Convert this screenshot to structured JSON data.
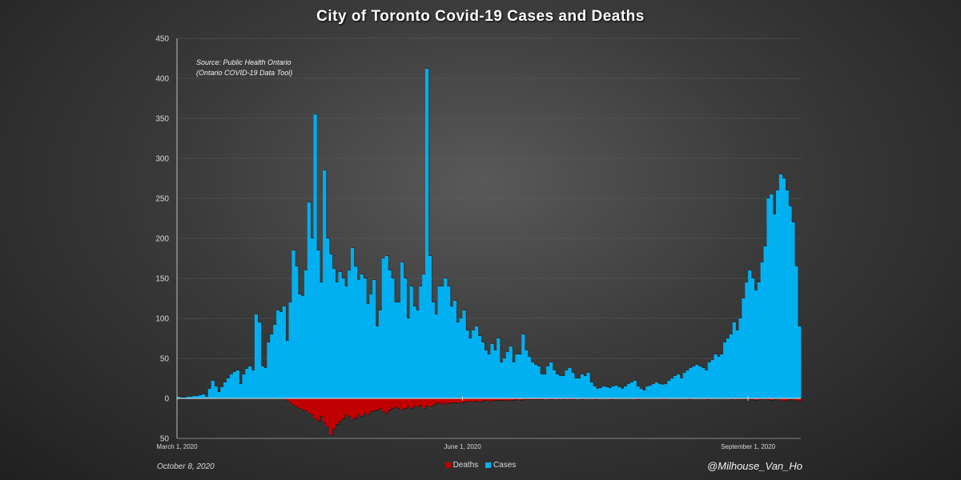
{
  "chart_data": {
    "type": "bar",
    "title": "City of Toronto Covid-19 Cases and Deaths",
    "annotation_lines": [
      "Source: Public Health Ontario",
      "(Ontario COVID-19 Data Tool)"
    ],
    "footer_date": "October 8, 2020",
    "credit": "@Milhouse_Van_Ho",
    "yaxis": {
      "ylim": [
        -50,
        450
      ],
      "ticks": [
        {
          "value": 450,
          "label": "450"
        },
        {
          "value": 400,
          "label": "400"
        },
        {
          "value": 350,
          "label": "350"
        },
        {
          "value": 300,
          "label": "300"
        },
        {
          "value": 250,
          "label": "250"
        },
        {
          "value": 200,
          "label": "200"
        },
        {
          "value": 150,
          "label": "150"
        },
        {
          "value": 100,
          "label": "100"
        },
        {
          "value": 50,
          "label": "50"
        },
        {
          "value": 0,
          "label": "0"
        },
        {
          "value": -50,
          "label": "50"
        }
      ],
      "grid": true
    },
    "xaxis": {
      "start_date": "2020-03-01",
      "tick_labels": [
        {
          "index": 0,
          "label": "March 1, 2020"
        },
        {
          "index": 92,
          "label": "June 1, 2020"
        },
        {
          "index": 184,
          "label": "September 1, 2020"
        }
      ]
    },
    "legend": {
      "position": "bottom",
      "entries": [
        {
          "name": "Deaths",
          "color": "#c00000"
        },
        {
          "name": "Cases",
          "color": "#00b0f0"
        }
      ]
    },
    "series": [
      {
        "name": "Cases",
        "color": "#00b0f0",
        "values": [
          2,
          1,
          1,
          2,
          2,
          3,
          3,
          4,
          5,
          2,
          12,
          22,
          15,
          8,
          14,
          20,
          25,
          30,
          33,
          35,
          18,
          30,
          37,
          40,
          35,
          105,
          95,
          40,
          38,
          70,
          80,
          92,
          110,
          108,
          115,
          72,
          120,
          185,
          165,
          130,
          128,
          160,
          245,
          200,
          355,
          185,
          145,
          285,
          200,
          180,
          162,
          145,
          158,
          150,
          140,
          160,
          188,
          165,
          148,
          155,
          150,
          118,
          130,
          148,
          90,
          110,
          175,
          178,
          160,
          150,
          120,
          120,
          170,
          150,
          100,
          140,
          115,
          110,
          140,
          155,
          412,
          178,
          120,
          105,
          140,
          140,
          150,
          140,
          115,
          122,
          95,
          100,
          110,
          85,
          75,
          85,
          90,
          78,
          70,
          60,
          55,
          68,
          60,
          75,
          45,
          50,
          58,
          65,
          45,
          55,
          55,
          80,
          60,
          52,
          45,
          42,
          40,
          30,
          30,
          40,
          45,
          35,
          30,
          28,
          28,
          35,
          38,
          32,
          25,
          25,
          30,
          28,
          32,
          20,
          15,
          12,
          13,
          15,
          14,
          13,
          15,
          16,
          14,
          12,
          15,
          18,
          20,
          22,
          15,
          12,
          10,
          15,
          16,
          18,
          20,
          18,
          17,
          18,
          22,
          25,
          28,
          30,
          25,
          32,
          35,
          38,
          40,
          42,
          40,
          38,
          35,
          45,
          48,
          55,
          52,
          55,
          70,
          75,
          80,
          95,
          85,
          100,
          125,
          145,
          160,
          150,
          135,
          145,
          170,
          190,
          250,
          255,
          230,
          260,
          280,
          275,
          260,
          240,
          220,
          165,
          90
        ]
      },
      {
        "name": "Deaths",
        "color": "#c00000",
        "values": [
          0,
          0,
          0,
          0,
          0,
          0,
          0,
          0,
          0,
          0,
          0,
          0,
          0,
          0,
          0,
          0,
          0,
          0,
          0,
          0,
          0,
          0,
          0,
          0,
          0,
          0,
          0,
          0,
          0,
          0,
          0,
          0,
          0,
          0,
          0,
          2,
          5,
          8,
          10,
          12,
          14,
          15,
          18,
          20,
          25,
          28,
          22,
          30,
          35,
          45,
          38,
          32,
          28,
          25,
          20,
          22,
          26,
          24,
          20,
          22,
          18,
          20,
          16,
          15,
          14,
          12,
          16,
          18,
          14,
          12,
          10,
          12,
          14,
          12,
          10,
          12,
          9,
          10,
          8,
          12,
          9,
          10,
          8,
          6,
          5,
          7,
          6,
          6,
          5,
          5,
          5,
          5,
          4,
          4,
          3,
          4,
          3,
          4,
          3,
          2,
          3,
          3,
          2,
          2,
          2,
          2,
          3,
          2,
          2,
          1,
          2,
          1,
          1,
          1,
          1,
          1,
          1,
          1,
          0,
          1,
          1,
          0,
          1,
          0,
          1,
          0,
          1,
          1,
          0,
          0,
          1,
          0,
          0,
          0,
          1,
          0,
          0,
          0,
          0,
          1,
          0,
          0,
          0,
          0,
          0,
          0,
          0,
          0,
          1,
          0,
          0,
          0,
          0,
          0,
          0,
          0,
          1,
          0,
          0,
          0,
          0,
          0,
          0,
          0,
          1,
          0,
          0,
          0,
          0,
          0,
          1,
          0,
          0,
          0,
          0,
          0,
          0,
          0,
          1,
          0,
          1,
          0,
          1,
          0,
          1,
          0,
          2,
          1,
          0,
          1,
          1,
          2,
          1,
          0,
          2,
          3,
          2,
          1,
          0,
          2,
          3
        ]
      }
    ]
  }
}
